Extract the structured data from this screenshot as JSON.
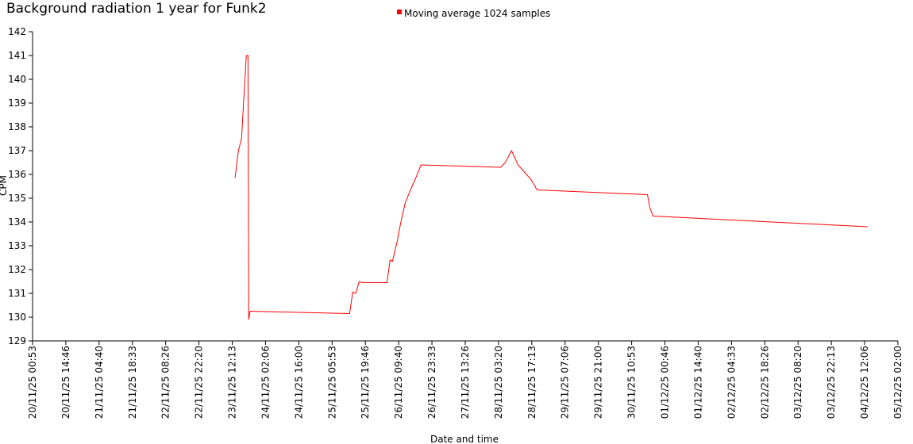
{
  "chart_data": {
    "type": "line",
    "title": "Background radiation 1 year for Funk2",
    "xlabel": "Date and time",
    "ylabel": "CPM",
    "x": [
      "23/11/25 13:23",
      "23/11/25 14:47",
      "23/11/25 16:05",
      "23/11/25 18:05",
      "23/11/25 18:47",
      "23/11/25 19:05",
      "23/11/25 19:41",
      "25/11/25 13:11",
      "25/11/25 14:29",
      "25/11/25 15:47",
      "25/11/25 17:11",
      "25/11/25 18:29",
      "26/11/25 04:47",
      "26/11/25 06:05",
      "26/11/25 07:05",
      "26/11/25 09:05",
      "26/11/25 10:23",
      "26/11/25 12:23",
      "26/11/25 14:23",
      "26/11/25 17:00",
      "26/11/25 19:00",
      "28/11/25 04:11",
      "28/11/25 06:11",
      "28/11/25 08:47",
      "28/11/25 11:29",
      "28/11/25 14:05",
      "28/11/25 16:47",
      "28/11/25 19:23",
      "30/11/25 17:29",
      "30/11/25 18:29",
      "30/11/25 19:47",
      "04/12/25 13:23"
    ],
    "series": [
      {
        "name": "Moving average 1024 samples",
        "color": "#ff0000",
        "values": [
          135.85,
          137.0,
          137.5,
          141.0,
          141.0,
          129.9,
          130.25,
          130.15,
          131.05,
          131.0,
          131.5,
          131.45,
          131.45,
          132.4,
          132.35,
          133.2,
          133.9,
          134.8,
          135.3,
          135.9,
          136.4,
          136.3,
          136.5,
          137.0,
          136.4,
          136.1,
          135.8,
          135.35,
          135.15,
          134.6,
          134.25,
          133.8
        ]
      }
    ],
    "xlim": [
      "20/11/25 00:53",
      "05/12/25 02:00"
    ],
    "xticks": [
      "20/11/25 00:53",
      "20/11/25 14:46",
      "21/11/25 04:40",
      "21/11/25 18:33",
      "22/11/25 08:26",
      "22/11/25 22:20",
      "23/11/25 12:13",
      "24/11/25 02:06",
      "24/11/25 16:00",
      "25/11/25 05:53",
      "25/11/25 19:46",
      "26/11/25 09:40",
      "26/11/25 23:33",
      "27/11/25 13:26",
      "28/11/25 03:20",
      "28/11/25 17:13",
      "29/11/25 07:06",
      "29/11/25 21:00",
      "30/11/25 10:53",
      "01/12/25 00:46",
      "01/12/25 14:40",
      "02/12/25 04:33",
      "02/12/25 18:26",
      "03/12/25 08:20",
      "03/12/25 22:13",
      "04/12/25 12:06",
      "05/12/25 02:00"
    ],
    "ylim": [
      129,
      142
    ],
    "yticks": [
      129,
      130,
      131,
      132,
      133,
      134,
      135,
      136,
      137,
      138,
      139,
      140,
      141,
      142
    ],
    "grid": false
  }
}
